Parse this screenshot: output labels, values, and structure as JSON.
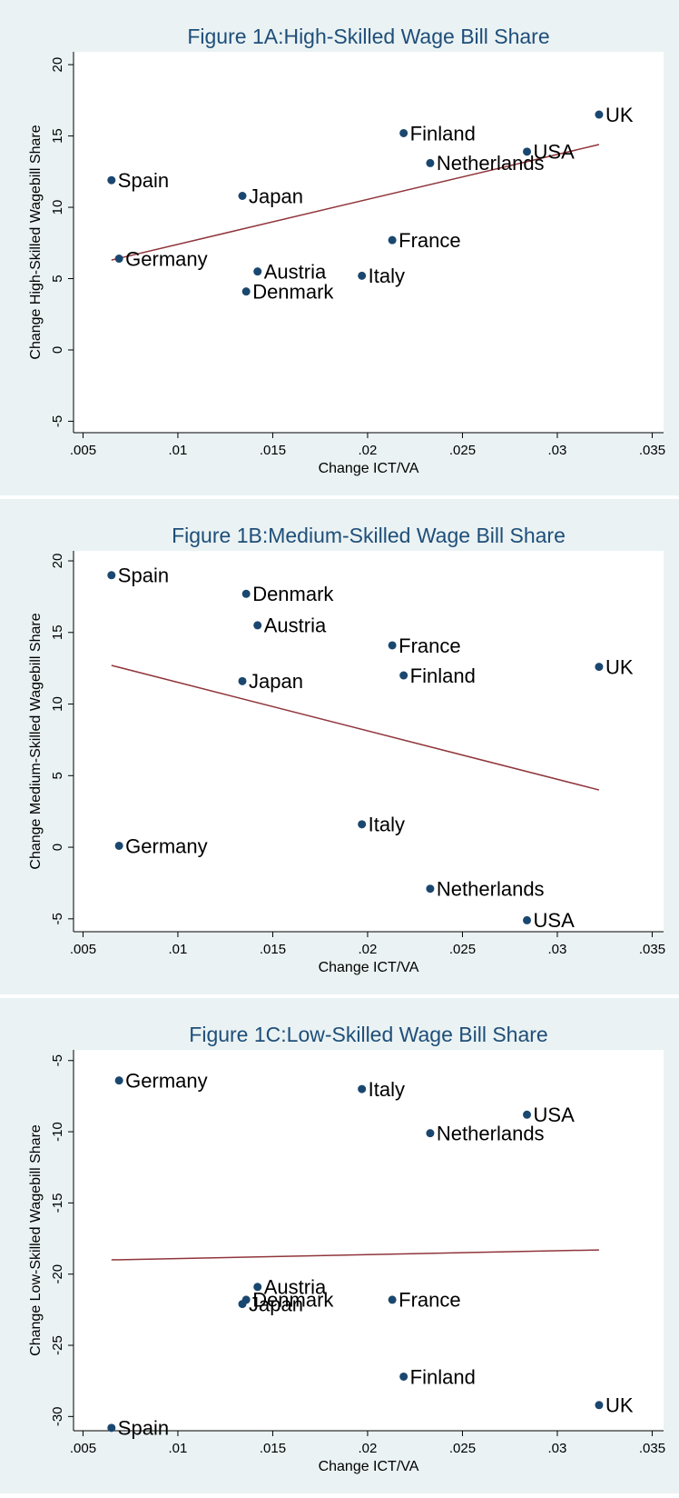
{
  "chart_data": [
    {
      "type": "scatter",
      "title": "Figure 1A:High-Skilled Wage Bill Share",
      "xlabel": "Change ICT/VA",
      "ylabel": "Change High-Skilled Wagebill Share",
      "labels": [
        "Spain",
        "Germany",
        "Japan",
        "Austria",
        "Denmark",
        "Italy",
        "France",
        "Finland",
        "Netherlands",
        "USA",
        "UK"
      ],
      "x": [
        0.0065,
        0.0069,
        0.0134,
        0.0142,
        0.0136,
        0.0197,
        0.0213,
        0.0219,
        0.0233,
        0.0284,
        0.0322
      ],
      "values": [
        11.9,
        6.4,
        10.8,
        5.5,
        4.1,
        5.2,
        7.7,
        15.2,
        13.1,
        13.9,
        16.5
      ],
      "color": "#1a476f",
      "fit": {
        "x": [
          0.0065,
          0.0322
        ],
        "y": [
          6.3,
          14.4
        ],
        "color": "#90353b"
      },
      "xlim": [
        0.0045,
        0.0356
      ],
      "ylim": [
        -5.8,
        20.9
      ],
      "xticks": [
        {
          "value": 0.005,
          "label": ".005"
        },
        {
          "value": 0.01,
          "label": ".01"
        },
        {
          "value": 0.015,
          "label": ".015"
        },
        {
          "value": 0.02,
          "label": ".02"
        },
        {
          "value": 0.025,
          "label": ".025"
        },
        {
          "value": 0.03,
          "label": ".03"
        },
        {
          "value": 0.035,
          "label": ".035"
        }
      ],
      "yticks": [
        -5,
        0,
        5,
        10,
        15,
        20
      ]
    },
    {
      "type": "scatter",
      "title": "Figure 1B:Medium-Skilled Wage Bill Share",
      "xlabel": "Change ICT/VA",
      "ylabel": "Change Medium-Skilled Wagebill Share",
      "labels": [
        "Spain",
        "Germany",
        "Japan",
        "Austria",
        "Denmark",
        "Italy",
        "France",
        "Finland",
        "Netherlands",
        "USA",
        "UK"
      ],
      "x": [
        0.0065,
        0.0069,
        0.0134,
        0.0142,
        0.0136,
        0.0197,
        0.0213,
        0.0219,
        0.0233,
        0.0284,
        0.0322
      ],
      "values": [
        19.0,
        0.1,
        11.6,
        15.5,
        17.7,
        1.6,
        14.1,
        12.0,
        -2.9,
        -5.1,
        12.6
      ],
      "color": "#1a476f",
      "fit": {
        "x": [
          0.0065,
          0.0322
        ],
        "y": [
          12.7,
          4.0
        ],
        "color": "#90353b"
      },
      "xlim": [
        0.0045,
        0.0356
      ],
      "ylim": [
        -5.9,
        20.7
      ],
      "xticks": [
        {
          "value": 0.005,
          "label": ".005"
        },
        {
          "value": 0.01,
          "label": ".01"
        },
        {
          "value": 0.015,
          "label": ".015"
        },
        {
          "value": 0.02,
          "label": ".02"
        },
        {
          "value": 0.025,
          "label": ".025"
        },
        {
          "value": 0.03,
          "label": ".03"
        },
        {
          "value": 0.035,
          "label": ".035"
        }
      ],
      "yticks": [
        -5,
        0,
        5,
        10,
        15,
        20
      ]
    },
    {
      "type": "scatter",
      "title": "Figure 1C:Low-Skilled Wage Bill Share",
      "xlabel": "Change ICT/VA",
      "ylabel": "Change Low-Skilled Wagebill Share",
      "labels": [
        "Spain",
        "Germany",
        "Japan",
        "Austria",
        "Denmark",
        "Italy",
        "France",
        "Finland",
        "Netherlands",
        "USA",
        "UK"
      ],
      "x": [
        0.0065,
        0.0069,
        0.0134,
        0.0142,
        0.0136,
        0.0197,
        0.0213,
        0.0219,
        0.0233,
        0.0284,
        0.0322
      ],
      "values": [
        -30.8,
        -6.4,
        -22.1,
        -20.9,
        -21.8,
        -7.0,
        -21.8,
        -27.2,
        -10.1,
        -8.8,
        -29.2
      ],
      "color": "#1a476f",
      "fit": {
        "x": [
          0.0065,
          0.0322
        ],
        "y": [
          -19.0,
          -18.3
        ],
        "color": "#90353b"
      },
      "xlim": [
        0.0045,
        0.0356
      ],
      "ylim": [
        -31.0,
        -4.25
      ],
      "xticks": [
        {
          "value": 0.005,
          "label": ".005"
        },
        {
          "value": 0.01,
          "label": ".01"
        },
        {
          "value": 0.015,
          "label": ".015"
        },
        {
          "value": 0.02,
          "label": ".02"
        },
        {
          "value": 0.025,
          "label": ".025"
        },
        {
          "value": 0.03,
          "label": ".03"
        },
        {
          "value": 0.035,
          "label": ".035"
        }
      ],
      "yticks": [
        -30,
        -25,
        -20,
        -15,
        -10,
        -5
      ]
    }
  ]
}
